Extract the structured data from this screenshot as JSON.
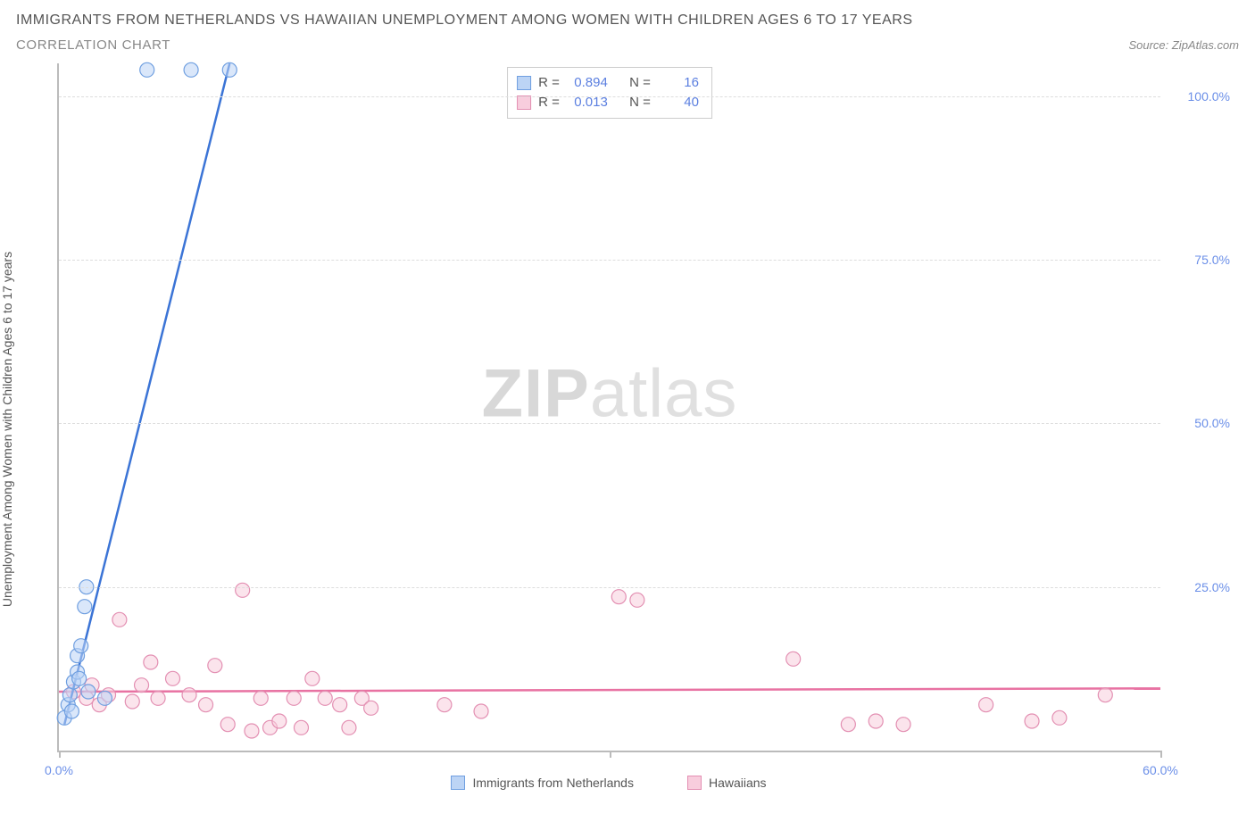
{
  "title": "IMMIGRANTS FROM NETHERLANDS VS HAWAIIAN UNEMPLOYMENT AMONG WOMEN WITH CHILDREN AGES 6 TO 17 YEARS",
  "subtitle": "CORRELATION CHART",
  "source": "Source: ZipAtlas.com",
  "watermark_a": "ZIP",
  "watermark_b": "atlas",
  "ylabel": "Unemployment Among Women with Children Ages 6 to 17 years",
  "chart": {
    "type": "scatter",
    "xlim": [
      0,
      60
    ],
    "ylim": [
      0,
      105
    ],
    "xticks": [
      0,
      30,
      60
    ],
    "xtick_labels": [
      "0.0%",
      "",
      "60.0%"
    ],
    "yticks": [
      25,
      50,
      75,
      100
    ],
    "ytick_labels": [
      "25.0%",
      "50.0%",
      "75.0%",
      "100.0%"
    ],
    "grid_color": "#dddddd",
    "axis_color": "#bbbbbb",
    "background_color": "#ffffff",
    "marker_radius": 8,
    "marker_stroke_width": 1.2,
    "trend_line_width": 2.5,
    "series": [
      {
        "name": "Immigrants from Netherlands",
        "fill": "#bcd4f5",
        "stroke": "#6f9fe0",
        "line_color": "#3b74d6",
        "R": "0.894",
        "N": "16",
        "points": [
          [
            0.3,
            5.0
          ],
          [
            0.5,
            7.0
          ],
          [
            0.6,
            8.5
          ],
          [
            0.7,
            6.0
          ],
          [
            0.8,
            10.5
          ],
          [
            1.0,
            12.0
          ],
          [
            1.0,
            14.5
          ],
          [
            1.1,
            11.0
          ],
          [
            1.2,
            16.0
          ],
          [
            1.4,
            22.0
          ],
          [
            1.5,
            25.0
          ],
          [
            1.6,
            9.0
          ],
          [
            2.5,
            8.0
          ],
          [
            4.8,
            104.0
          ],
          [
            7.2,
            104.0
          ],
          [
            9.3,
            104.0
          ]
        ],
        "trend": {
          "x1": 0.3,
          "y1": 4.0,
          "x2": 9.3,
          "y2": 105.0
        }
      },
      {
        "name": "Hawaiians",
        "fill": "#f8cddd",
        "stroke": "#e38fb2",
        "line_color": "#e872a2",
        "R": "0.013",
        "N": "40",
        "points": [
          [
            0.8,
            9.0
          ],
          [
            1.5,
            8.0
          ],
          [
            1.8,
            10.0
          ],
          [
            2.2,
            7.0
          ],
          [
            2.7,
            8.5
          ],
          [
            3.3,
            20.0
          ],
          [
            4.0,
            7.5
          ],
          [
            4.5,
            10.0
          ],
          [
            5.0,
            13.5
          ],
          [
            5.4,
            8.0
          ],
          [
            6.2,
            11.0
          ],
          [
            7.1,
            8.5
          ],
          [
            8.0,
            7.0
          ],
          [
            8.5,
            13.0
          ],
          [
            9.2,
            4.0
          ],
          [
            10.0,
            24.5
          ],
          [
            10.5,
            3.0
          ],
          [
            11.0,
            8.0
          ],
          [
            11.5,
            3.5
          ],
          [
            12.0,
            4.5
          ],
          [
            12.8,
            8.0
          ],
          [
            13.2,
            3.5
          ],
          [
            13.8,
            11.0
          ],
          [
            14.5,
            8.0
          ],
          [
            15.3,
            7.0
          ],
          [
            15.8,
            3.5
          ],
          [
            16.5,
            8.0
          ],
          [
            17.0,
            6.5
          ],
          [
            21.0,
            7.0
          ],
          [
            23.0,
            6.0
          ],
          [
            30.5,
            23.5
          ],
          [
            31.5,
            23.0
          ],
          [
            40.0,
            14.0
          ],
          [
            43.0,
            4.0
          ],
          [
            44.5,
            4.5
          ],
          [
            46.0,
            4.0
          ],
          [
            50.5,
            7.0
          ],
          [
            53.0,
            4.5
          ],
          [
            54.5,
            5.0
          ],
          [
            57.0,
            8.5
          ]
        ],
        "trend": {
          "x1": 0.0,
          "y1": 9.0,
          "x2": 60.0,
          "y2": 9.5
        }
      }
    ]
  },
  "legend_labels": {
    "series1": "Immigrants from Netherlands",
    "series2": "Hawaiians"
  },
  "stats_labels": {
    "R": "R =",
    "N": "N ="
  }
}
